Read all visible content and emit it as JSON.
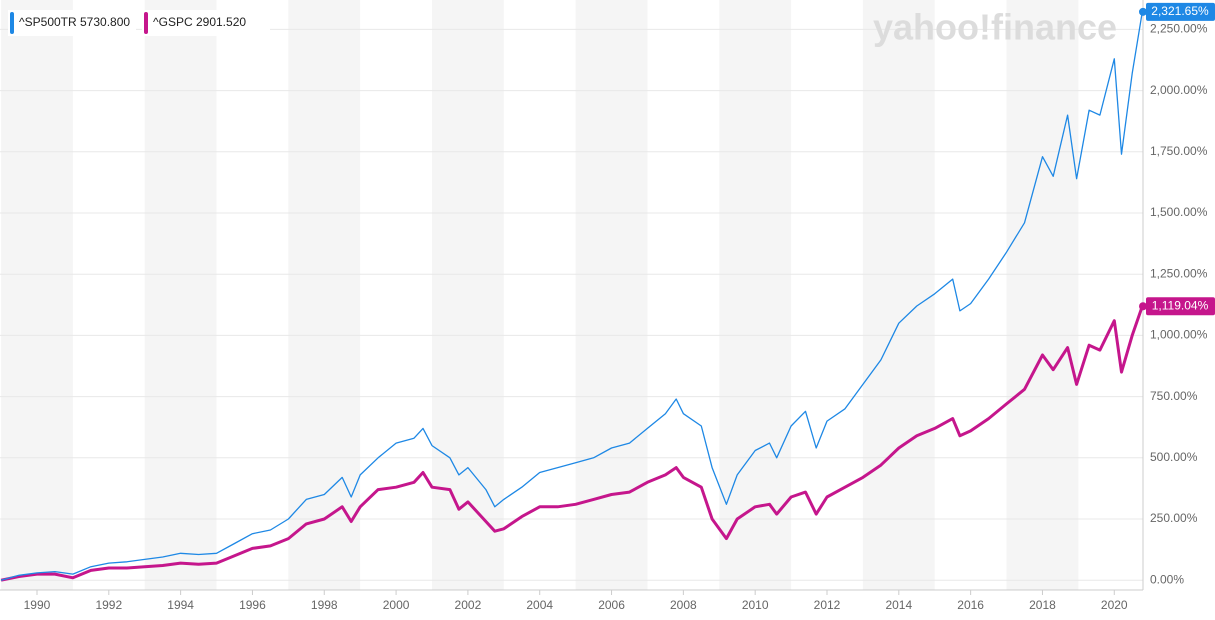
{
  "chart_data": {
    "type": "line",
    "watermark": "yahoo!finance",
    "x": [
      1989.0,
      1989.5,
      1990.0,
      1990.5,
      1991.0,
      1991.5,
      1992.0,
      1992.5,
      1993.0,
      1993.5,
      1994.0,
      1994.5,
      1995.0,
      1995.5,
      1996.0,
      1996.5,
      1997.0,
      1997.5,
      1998.0,
      1998.5,
      1998.75,
      1999.0,
      1999.5,
      2000.0,
      2000.5,
      2000.75,
      2001.0,
      2001.5,
      2001.75,
      2002.0,
      2002.5,
      2002.75,
      2003.0,
      2003.5,
      2004.0,
      2004.5,
      2005.0,
      2005.5,
      2006.0,
      2006.5,
      2007.0,
      2007.5,
      2007.8,
      2008.0,
      2008.5,
      2008.8,
      2009.2,
      2009.5,
      2010.0,
      2010.4,
      2010.6,
      2011.0,
      2011.4,
      2011.7,
      2012.0,
      2012.5,
      2013.0,
      2013.5,
      2014.0,
      2014.5,
      2015.0,
      2015.5,
      2015.7,
      2016.0,
      2016.5,
      2017.0,
      2017.5,
      2018.0,
      2018.3,
      2018.7,
      2018.95,
      2019.3,
      2019.6,
      2020.0,
      2020.2,
      2020.5,
      2020.78
    ],
    "series": [
      {
        "name": "^SP500TR",
        "quote": "5730.800",
        "color": "#1e88e5",
        "end_label": "2,321.65%",
        "values": [
          0,
          20,
          30,
          35,
          25,
          55,
          70,
          75,
          85,
          95,
          110,
          105,
          110,
          150,
          190,
          205,
          250,
          330,
          350,
          420,
          340,
          430,
          500,
          560,
          580,
          620,
          550,
          500,
          430,
          460,
          370,
          300,
          330,
          380,
          440,
          460,
          480,
          500,
          540,
          560,
          620,
          680,
          740,
          680,
          630,
          460,
          310,
          430,
          530,
          560,
          500,
          630,
          690,
          540,
          650,
          700,
          800,
          900,
          1050,
          1120,
          1170,
          1230,
          1100,
          1130,
          1230,
          1340,
          1460,
          1730,
          1650,
          1900,
          1640,
          1920,
          1900,
          2130,
          1740,
          2070,
          2321.65
        ]
      },
      {
        "name": "^GSPC",
        "quote": "2901.520",
        "color": "#c5168c",
        "end_label": "1,119.04%",
        "values": [
          0,
          15,
          25,
          25,
          10,
          40,
          50,
          50,
          55,
          60,
          70,
          65,
          70,
          100,
          130,
          140,
          170,
          230,
          250,
          300,
          240,
          300,
          370,
          380,
          400,
          440,
          380,
          370,
          290,
          320,
          240,
          200,
          210,
          260,
          300,
          300,
          310,
          330,
          350,
          360,
          400,
          430,
          460,
          420,
          380,
          250,
          170,
          250,
          300,
          310,
          270,
          340,
          360,
          270,
          340,
          380,
          420,
          470,
          540,
          590,
          620,
          660,
          590,
          610,
          660,
          720,
          780,
          920,
          860,
          950,
          800,
          960,
          940,
          1060,
          850,
          1000,
          1119.04
        ]
      }
    ],
    "xlim": [
      1988.97,
      2020.8
    ],
    "xticks": [
      1990,
      1992,
      1994,
      1996,
      1998,
      2000,
      2002,
      2004,
      2006,
      2008,
      2010,
      2012,
      2014,
      2016,
      2018,
      2020
    ],
    "ylim": [
      -40,
      2370
    ],
    "yticks": [
      {
        "value": 0,
        "label": "0.00%"
      },
      {
        "value": 250,
        "label": "250.00%"
      },
      {
        "value": 500,
        "label": "500.00%"
      },
      {
        "value": 750,
        "label": "750.00%"
      },
      {
        "value": 1000,
        "label": "1,000.00%"
      },
      {
        "value": 1250,
        "label": "1,250.00%"
      },
      {
        "value": 1500,
        "label": "1,500.00%"
      },
      {
        "value": 1750,
        "label": "1,750.00%"
      },
      {
        "value": 2000,
        "label": "2,000.00%"
      },
      {
        "value": 2250,
        "label": "2,250.00%"
      }
    ],
    "grid": true
  }
}
